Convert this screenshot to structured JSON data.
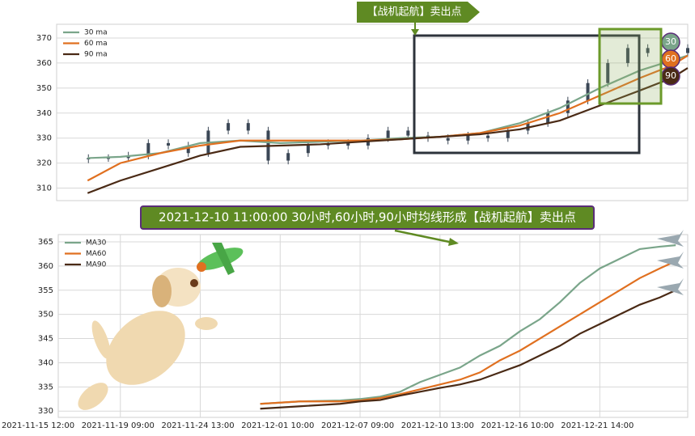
{
  "chart_data": [
    {
      "type": "candlestick",
      "annotation": "【战机起航】卖出点",
      "badges": [
        "30",
        "60",
        "90"
      ],
      "xlim": [
        0,
        8.1
      ],
      "ylim": [
        305,
        375.5
      ],
      "yticks": [
        310,
        320,
        330,
        340,
        350,
        360,
        370
      ],
      "grid": true,
      "legend": "upper left",
      "ohlc": {
        "x": [
          0.6,
          0.85,
          1.1,
          1.35,
          1.6,
          1.85,
          2.1,
          2.35,
          2.6,
          2.85,
          3.1,
          3.35,
          3.6,
          3.85,
          4.1,
          4.35,
          4.6,
          4.85,
          5.1,
          5.35,
          5.6,
          5.85,
          6.1,
          6.35,
          6.6,
          6.85,
          7.1,
          7.35,
          7.6,
          7.85,
          8.1
        ],
        "open": [
          321.5,
          322,
          322,
          323,
          328,
          327,
          324,
          333,
          336,
          333,
          321,
          324,
          327,
          328,
          327,
          330,
          333,
          331,
          330,
          329,
          331,
          330,
          333,
          336,
          340,
          345,
          352,
          360,
          366,
          364,
          364
        ],
        "high": [
          323.5,
          323.5,
          324.5,
          329.5,
          329.5,
          328.5,
          334.5,
          337.5,
          337.5,
          334.5,
          325.5,
          328.5,
          329.5,
          329.5,
          331.5,
          334.5,
          334.5,
          332.5,
          331.5,
          332.5,
          332.5,
          334.5,
          337.5,
          341.5,
          346.5,
          353.5,
          361.5,
          367.5,
          367.5,
          365.5,
          367.5
        ],
        "low": [
          320,
          320.5,
          320.5,
          321.5,
          325.5,
          322.5,
          322.5,
          331.5,
          331.5,
          319.5,
          319.5,
          322.5,
          325.5,
          325.5,
          325.5,
          328.5,
          329.5,
          328.5,
          327.5,
          327.5,
          328.5,
          328.5,
          331.5,
          334.5,
          338.5,
          343.5,
          350.5,
          358.5,
          362.5,
          362.5,
          362.5
        ],
        "close": [
          322,
          322,
          323,
          328,
          327,
          324,
          333,
          336,
          333,
          321,
          324,
          327,
          328,
          327,
          330,
          333,
          331,
          330,
          329,
          331,
          330,
          333,
          336,
          340,
          345,
          352,
          360,
          366,
          364,
          364,
          366
        ],
        "color": "#3b4756"
      },
      "x": [
        0.59,
        1.0,
        1.5,
        2.0,
        2.5,
        3.0,
        3.5,
        4.0,
        4.5,
        5.0,
        5.5,
        6.0,
        6.5,
        7.0,
        7.5,
        7.9,
        8.1
      ],
      "series": [
        {
          "name": "30 ma",
          "color": "#7aa58a",
          "values": [
            322,
            322.5,
            324,
            328,
            329,
            328,
            328.5,
            329,
            330,
            330.5,
            332,
            336,
            342,
            350,
            357,
            361,
            363
          ]
        },
        {
          "name": "60 ma",
          "color": "#e07020",
          "values": [
            313,
            320,
            324,
            327,
            329,
            329,
            329,
            329,
            329.5,
            330.5,
            332,
            335,
            340,
            347,
            354,
            359,
            363
          ]
        },
        {
          "name": "90 ma",
          "color": "#4a2a15",
          "values": [
            308,
            313,
            318,
            323,
            326.5,
            327,
            327.5,
            328.5,
            329.5,
            330.5,
            331.5,
            333.5,
            337,
            343,
            349,
            354,
            358
          ]
        }
      ]
    },
    {
      "type": "line",
      "annotation": "2021-12-10 11:00:00 30小时,60小时,90小时均线形成【战机起航】卖出点",
      "xlim": [
        0,
        8.1
      ],
      "xticks": [
        {
          "value": 0,
          "label": "2021-11-15 12:00"
        },
        {
          "value": 1,
          "label": "2021-11-19 09:00"
        },
        {
          "value": 2,
          "label": "2021-11-24 13:00"
        },
        {
          "value": 3,
          "label": "2021-12-01 10:00"
        },
        {
          "value": 4,
          "label": "2021-12-07 09:00"
        },
        {
          "value": 5,
          "label": "2021-12-10 13:00"
        },
        {
          "value": 6,
          "label": "2021-12-16 10:00"
        },
        {
          "value": 7,
          "label": "2021-12-21 14:00"
        }
      ],
      "ylim": [
        328.7,
        366.5
      ],
      "yticks": [
        330,
        335,
        340,
        345,
        350,
        355,
        360,
        365
      ],
      "grid": true,
      "legend": "upper left",
      "x": [
        2.75,
        3.25,
        3.75,
        4.0,
        4.25,
        4.5,
        4.75,
        5.0,
        5.25,
        5.5,
        5.75,
        6.0,
        6.25,
        6.5,
        6.75,
        7.0,
        7.25,
        7.5,
        7.75,
        7.95
      ],
      "series": [
        {
          "name": "MA30",
          "color": "#7aa58a",
          "values": [
            331.5,
            332,
            332.2,
            332.5,
            333,
            334,
            336,
            337.5,
            339,
            341.5,
            343.5,
            346.5,
            349,
            352.5,
            356.5,
            359.5,
            361.5,
            363.5,
            364,
            364.3
          ]
        },
        {
          "name": "MA60",
          "color": "#e07020",
          "values": [
            331.5,
            332,
            332,
            332.2,
            332.7,
            333.5,
            334.5,
            335.5,
            336.5,
            338,
            340.5,
            342.5,
            345,
            347.5,
            350,
            352.5,
            355,
            357.5,
            359.5,
            361
          ]
        },
        {
          "name": "MA90",
          "color": "#4a2a15",
          "values": [
            330.5,
            331,
            331.5,
            332,
            332.3,
            333.2,
            334,
            334.8,
            335.5,
            336.5,
            338,
            339.5,
            341.5,
            343.5,
            346,
            348,
            350,
            352,
            353.5,
            355
          ]
        }
      ]
    }
  ]
}
